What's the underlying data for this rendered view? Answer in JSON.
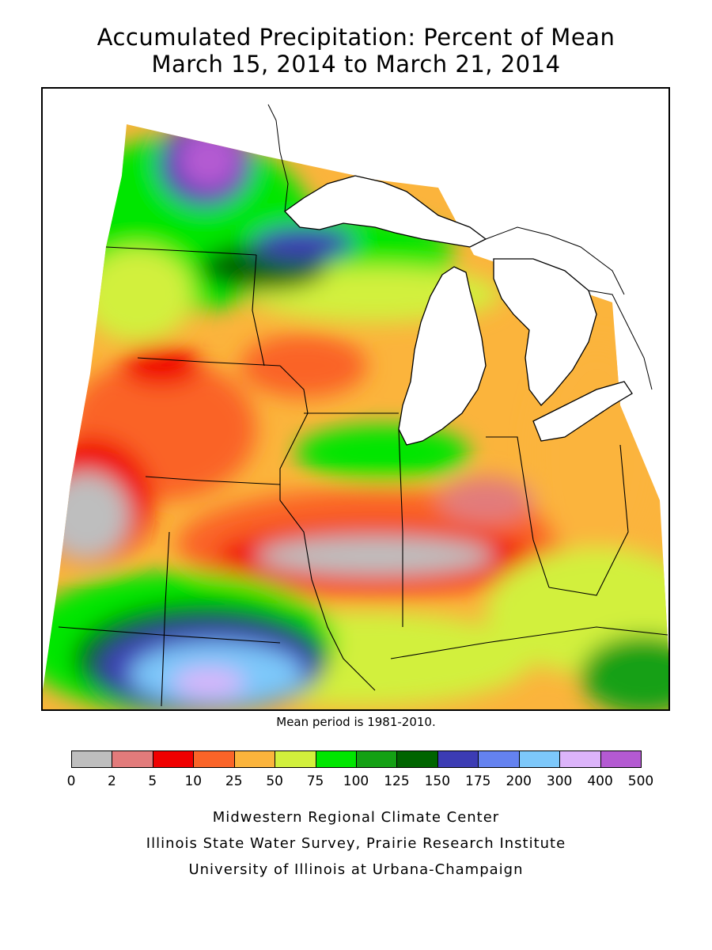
{
  "title_line1": "Accumulated Precipitation: Percent of Mean",
  "title_line2": "March 15, 2014 to March 21, 2014",
  "mean_period_note": "Mean period is 1981-2010.",
  "legend": {
    "ticks": [
      "0",
      "2",
      "5",
      "10",
      "25",
      "50",
      "75",
      "100",
      "125",
      "150",
      "175",
      "200",
      "300",
      "400",
      "500"
    ],
    "colors": [
      "#bebebe",
      "#e27b7b",
      "#f00000",
      "#fa6428",
      "#fbb43c",
      "#d2f03c",
      "#00e600",
      "#14a014",
      "#006400",
      "#3c3cb4",
      "#6482f0",
      "#7dc8fa",
      "#dcb4fa",
      "#b45ad2"
    ]
  },
  "credits": [
    "Midwestern Regional Climate Center",
    "Illinois State Water Survey, Prairie Research Institute",
    "University of Illinois at Urbana-Champaign"
  ]
}
